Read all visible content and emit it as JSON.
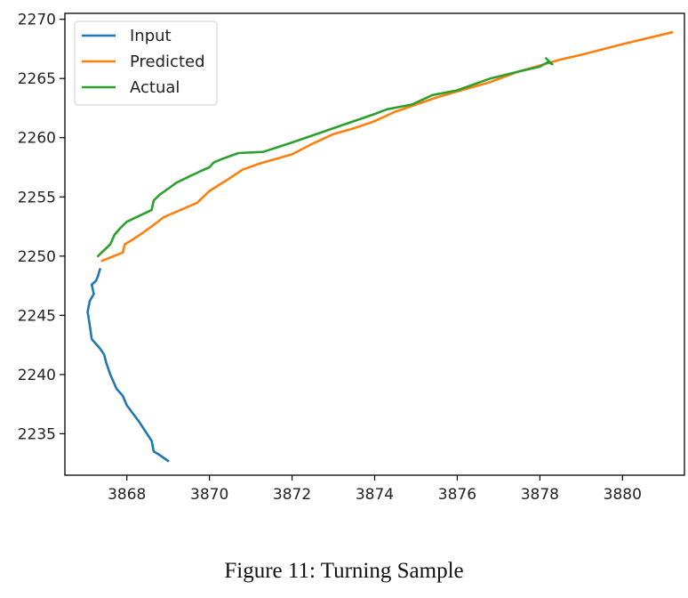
{
  "caption": "Figure 11: Turning Sample",
  "chart_data": {
    "type": "line",
    "title": "",
    "xlabel": "",
    "ylabel": "",
    "xlim": [
      3866.5,
      3881.5
    ],
    "ylim": [
      2231.5,
      2270.5
    ],
    "xticks": [
      3868,
      3870,
      3872,
      3874,
      3876,
      3878,
      3880
    ],
    "yticks": [
      2235,
      2240,
      2245,
      2250,
      2255,
      2260,
      2265,
      2270
    ],
    "grid": false,
    "legend_position": "upper-left",
    "series": [
      {
        "name": "Input",
        "color": "#1f77b4",
        "x": [
          3869.0,
          3868.75,
          3868.65,
          3868.6,
          3868.3,
          3868.0,
          3867.9,
          3867.75,
          3867.6,
          3867.5,
          3867.45,
          3867.35,
          3867.25,
          3867.15,
          3867.1,
          3867.05,
          3867.1,
          3867.2,
          3867.15,
          3867.25,
          3867.3,
          3867.35
        ],
        "y": [
          2232.7,
          2233.3,
          2233.5,
          2234.4,
          2236.0,
          2237.4,
          2238.2,
          2238.8,
          2240.0,
          2241.0,
          2241.7,
          2242.2,
          2242.6,
          2243.0,
          2244.2,
          2245.3,
          2246.2,
          2246.8,
          2247.6,
          2247.9,
          2248.3,
          2248.9
        ]
      },
      {
        "name": "Predicted",
        "color": "#ff7f0e",
        "x": [
          3867.4,
          3867.9,
          3867.95,
          3868.1,
          3868.4,
          3868.6,
          3868.9,
          3869.5,
          3869.7,
          3870.0,
          3870.5,
          3870.8,
          3871.2,
          3872.0,
          3872.5,
          3873.0,
          3873.5,
          3874.0,
          3874.5,
          3875.0,
          3875.5,
          3876.0,
          3876.8,
          3877.5,
          3878.0,
          3878.5,
          3879.0,
          3880.0,
          3881.2
        ],
        "y": [
          2249.6,
          2250.3,
          2251.0,
          2251.3,
          2252.0,
          2252.5,
          2253.3,
          2254.2,
          2254.5,
          2255.5,
          2256.6,
          2257.3,
          2257.8,
          2258.6,
          2259.5,
          2260.3,
          2260.8,
          2261.4,
          2262.2,
          2262.8,
          2263.4,
          2263.9,
          2264.7,
          2265.6,
          2266.1,
          2266.6,
          2267.0,
          2267.9,
          2268.9
        ]
      },
      {
        "name": "Actual",
        "color": "#2ca02c",
        "x": [
          3867.3,
          3867.6,
          3867.7,
          3867.85,
          3868.0,
          3868.6,
          3868.65,
          3868.8,
          3869.0,
          3869.2,
          3869.5,
          3869.8,
          3870.0,
          3870.1,
          3870.3,
          3870.7,
          3871.3,
          3872.0,
          3872.5,
          3873.0,
          3873.5,
          3874.0,
          3874.3,
          3874.6,
          3874.9,
          3875.4,
          3876.0,
          3876.8,
          3877.5,
          3878.0,
          3878.2,
          3878.3,
          3878.15
        ],
        "y": [
          2250.0,
          2251.0,
          2251.8,
          2252.4,
          2252.9,
          2253.9,
          2254.7,
          2255.2,
          2255.7,
          2256.2,
          2256.7,
          2257.2,
          2257.5,
          2257.9,
          2258.2,
          2258.7,
          2258.8,
          2259.6,
          2260.2,
          2260.8,
          2261.4,
          2262.0,
          2262.4,
          2262.6,
          2262.8,
          2263.6,
          2264.0,
          2265.0,
          2265.6,
          2266.0,
          2266.4,
          2266.2,
          2266.7
        ]
      }
    ]
  }
}
